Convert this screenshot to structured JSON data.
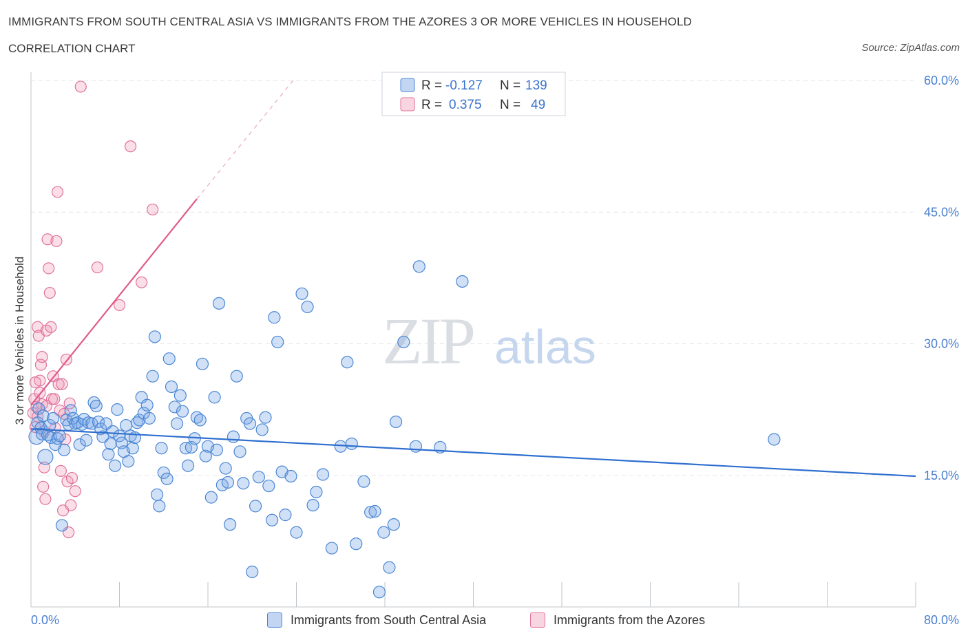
{
  "title": "IMMIGRANTS FROM SOUTH CENTRAL ASIA VS IMMIGRANTS FROM THE AZORES 3 OR MORE VEHICLES IN HOUSEHOLD",
  "subtitle": "CORRELATION CHART",
  "source": "Source: ZipAtlas.com",
  "watermark": {
    "zip": "ZIP",
    "atlas": "atlas"
  },
  "colors": {
    "blue": "#4a86d4",
    "blue_fill": "rgba(120,165,230,0.35)",
    "blue_line": "#2f6fcf",
    "pink": "#e0729a",
    "pink_fill": "rgba(240,150,180,0.30)",
    "pink_line": "#e05a8a",
    "axis_text": "#4a7fd0"
  },
  "stats": {
    "r_label": "R =",
    "n_label": "N =",
    "blue": {
      "r": "-0.127",
      "n": "139"
    },
    "pink": {
      "r": "0.375",
      "n": "49"
    }
  },
  "legend": {
    "blue": "Immigrants from South Central Asia",
    "pink": "Immigrants from the Azores"
  },
  "chart_data": {
    "type": "scatter",
    "title": "IMMIGRANTS FROM SOUTH CENTRAL ASIA VS IMMIGRANTS FROM THE AZORES 3 OR MORE VEHICLES IN HOUSEHOLD",
    "xlabel": "",
    "ylabel": "3 or more Vehicles in Household",
    "xlim": [
      0,
      80
    ],
    "ylim": [
      0,
      60
    ],
    "x_tick_labels": [
      "0.0%",
      "80.0%"
    ],
    "y_ticks": [
      15,
      30,
      45,
      60
    ],
    "y_tick_labels": [
      "15.0%",
      "30.0%",
      "45.0%",
      "60.0%"
    ],
    "series": [
      {
        "name": "Immigrants from South Central Asia",
        "color": "blue",
        "trend": {
          "x": [
            0,
            80
          ],
          "y": [
            20.3,
            14.9
          ]
        },
        "points": [
          [
            0.5,
            19.4
          ],
          [
            0.6,
            21.0
          ],
          [
            0.7,
            22.6
          ],
          [
            0.9,
            20.4
          ],
          [
            1.0,
            19.7
          ],
          [
            1.1,
            21.8
          ],
          [
            1.3,
            17.1
          ],
          [
            1.5,
            19.6
          ],
          [
            1.7,
            20.7
          ],
          [
            1.8,
            19.3
          ],
          [
            2.0,
            21.5
          ],
          [
            2.2,
            18.5
          ],
          [
            2.4,
            19.2
          ],
          [
            2.6,
            19.5
          ],
          [
            2.8,
            9.3
          ],
          [
            3.0,
            17.9
          ],
          [
            3.2,
            21.3
          ],
          [
            3.4,
            20.8
          ],
          [
            3.6,
            22.4
          ],
          [
            3.8,
            21.5
          ],
          [
            4.0,
            20.9
          ],
          [
            4.2,
            21.0
          ],
          [
            4.4,
            18.5
          ],
          [
            4.6,
            20.8
          ],
          [
            4.8,
            21.4
          ],
          [
            5.0,
            19.0
          ],
          [
            5.2,
            21.0
          ],
          [
            5.5,
            20.9
          ],
          [
            5.7,
            23.3
          ],
          [
            5.9,
            22.9
          ],
          [
            6.1,
            21.1
          ],
          [
            6.3,
            20.3
          ],
          [
            6.5,
            19.4
          ],
          [
            6.8,
            20.9
          ],
          [
            7.0,
            17.4
          ],
          [
            7.2,
            18.6
          ],
          [
            7.4,
            20.0
          ],
          [
            7.6,
            16.1
          ],
          [
            7.8,
            22.5
          ],
          [
            8.0,
            19.5
          ],
          [
            8.2,
            18.7
          ],
          [
            8.4,
            17.7
          ],
          [
            8.6,
            20.7
          ],
          [
            8.8,
            16.6
          ],
          [
            9.0,
            19.5
          ],
          [
            9.2,
            18.1
          ],
          [
            9.4,
            19.3
          ],
          [
            9.6,
            21.0
          ],
          [
            9.8,
            21.3
          ],
          [
            10.0,
            23.9
          ],
          [
            10.2,
            22.1
          ],
          [
            10.5,
            23.0
          ],
          [
            10.7,
            21.5
          ],
          [
            11.0,
            26.3
          ],
          [
            11.2,
            30.8
          ],
          [
            11.4,
            12.8
          ],
          [
            11.6,
            11.5
          ],
          [
            11.8,
            18.1
          ],
          [
            12.0,
            15.3
          ],
          [
            12.3,
            14.6
          ],
          [
            12.5,
            28.3
          ],
          [
            12.7,
            25.1
          ],
          [
            13.0,
            22.8
          ],
          [
            13.2,
            20.9
          ],
          [
            13.5,
            24.1
          ],
          [
            13.7,
            22.3
          ],
          [
            14.0,
            18.1
          ],
          [
            14.2,
            16.1
          ],
          [
            14.5,
            18.2
          ],
          [
            14.8,
            19.2
          ],
          [
            15.0,
            21.6
          ],
          [
            15.3,
            21.3
          ],
          [
            15.5,
            27.7
          ],
          [
            15.8,
            17.2
          ],
          [
            16.0,
            18.3
          ],
          [
            16.3,
            12.5
          ],
          [
            16.6,
            23.9
          ],
          [
            16.8,
            17.9
          ],
          [
            17.0,
            34.6
          ],
          [
            17.3,
            13.9
          ],
          [
            17.6,
            15.8
          ],
          [
            17.8,
            14.2
          ],
          [
            18.0,
            9.4
          ],
          [
            18.3,
            19.4
          ],
          [
            18.6,
            26.3
          ],
          [
            18.9,
            17.7
          ],
          [
            19.2,
            14.1
          ],
          [
            19.5,
            21.5
          ],
          [
            19.8,
            20.9
          ],
          [
            20.0,
            4.0
          ],
          [
            20.3,
            11.5
          ],
          [
            20.6,
            14.8
          ],
          [
            20.9,
            20.2
          ],
          [
            21.2,
            21.6
          ],
          [
            21.5,
            13.8
          ],
          [
            21.8,
            9.9
          ],
          [
            22.0,
            33.0
          ],
          [
            22.3,
            30.2
          ],
          [
            22.7,
            15.4
          ],
          [
            23.0,
            10.5
          ],
          [
            23.5,
            14.9
          ],
          [
            24.0,
            8.5
          ],
          [
            24.5,
            35.7
          ],
          [
            25.0,
            34.2
          ],
          [
            25.5,
            11.6
          ],
          [
            25.8,
            13.1
          ],
          [
            26.4,
            15.1
          ],
          [
            27.2,
            6.7
          ],
          [
            28.0,
            18.3
          ],
          [
            28.6,
            27.9
          ],
          [
            29.0,
            18.6
          ],
          [
            29.4,
            7.2
          ],
          [
            30.1,
            14.3
          ],
          [
            30.7,
            10.8
          ],
          [
            31.1,
            10.9
          ],
          [
            31.5,
            1.7
          ],
          [
            31.9,
            8.5
          ],
          [
            32.4,
            4.5
          ],
          [
            32.8,
            9.4
          ],
          [
            33.0,
            21.1
          ],
          [
            33.7,
            30.2
          ],
          [
            34.8,
            18.3
          ],
          [
            35.1,
            38.8
          ],
          [
            37.0,
            18.2
          ],
          [
            39.0,
            37.1
          ],
          [
            67.2,
            19.1
          ]
        ]
      },
      {
        "name": "Immigrants from the Azores",
        "color": "pink",
        "trend": {
          "x": [
            0,
            15.0
          ],
          "y": [
            23.0,
            46.5
          ]
        },
        "trend_dashed": {
          "x": [
            15.0,
            23.7
          ],
          "y": [
            46.5,
            60.0
          ]
        },
        "points": [
          [
            0.2,
            22.1
          ],
          [
            0.3,
            23.7
          ],
          [
            0.4,
            20.5
          ],
          [
            0.5,
            22.8
          ],
          [
            0.6,
            31.9
          ],
          [
            0.7,
            30.9
          ],
          [
            0.8,
            25.8
          ],
          [
            0.9,
            27.6
          ],
          [
            1.0,
            23.1
          ],
          [
            1.1,
            13.7
          ],
          [
            1.2,
            15.9
          ],
          [
            1.3,
            12.3
          ],
          [
            1.4,
            31.5
          ],
          [
            1.5,
            41.9
          ],
          [
            1.6,
            38.6
          ],
          [
            1.7,
            35.8
          ],
          [
            1.8,
            31.9
          ],
          [
            1.9,
            23.7
          ],
          [
            2.0,
            26.3
          ],
          [
            2.1,
            23.7
          ],
          [
            2.2,
            20.4
          ],
          [
            2.3,
            41.7
          ],
          [
            2.4,
            47.3
          ],
          [
            2.5,
            25.4
          ],
          [
            2.6,
            22.4
          ],
          [
            2.7,
            15.5
          ],
          [
            2.8,
            25.4
          ],
          [
            2.9,
            11.0
          ],
          [
            3.0,
            22.0
          ],
          [
            3.1,
            19.1
          ],
          [
            3.2,
            28.2
          ],
          [
            3.3,
            14.3
          ],
          [
            3.4,
            8.5
          ],
          [
            3.5,
            23.2
          ],
          [
            3.6,
            11.6
          ],
          [
            3.7,
            14.7
          ],
          [
            4.0,
            13.2
          ],
          [
            4.5,
            59.3
          ],
          [
            6.0,
            38.7
          ],
          [
            8.0,
            34.4
          ],
          [
            9.0,
            52.5
          ],
          [
            10.0,
            37.0
          ],
          [
            11.0,
            45.3
          ],
          [
            0.4,
            25.6
          ],
          [
            0.6,
            21.7
          ],
          [
            0.8,
            24.4
          ],
          [
            1.0,
            28.5
          ],
          [
            1.2,
            20.0
          ],
          [
            1.4,
            22.9
          ]
        ]
      }
    ]
  }
}
